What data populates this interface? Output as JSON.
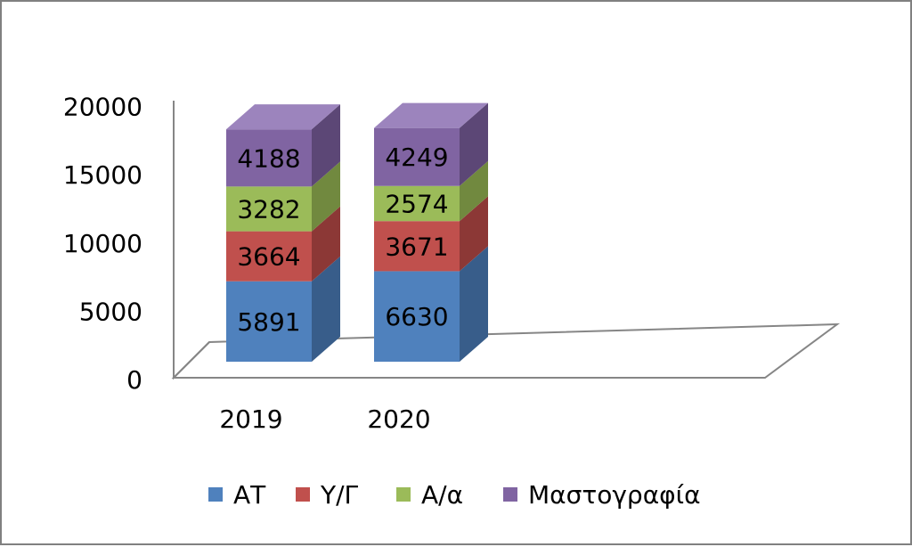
{
  "chart_data": {
    "type": "bar",
    "stacked": true,
    "three_d": true,
    "title": "",
    "xlabel": "",
    "ylabel": "",
    "categories": [
      "2019",
      "2020"
    ],
    "ylim": [
      0,
      20000
    ],
    "y_ticks": [
      "0",
      "5000",
      "10000",
      "15000",
      "20000"
    ],
    "grid": false,
    "legend_position": "bottom",
    "series": [
      {
        "name": "ΑΤ",
        "values": [
          5891,
          6630
        ],
        "color": "#4F81BD",
        "side_color": "#385D8A",
        "top_color": "#7099CF"
      },
      {
        "name": "Υ/Γ",
        "values": [
          3664,
          3671
        ],
        "color": "#C0504D",
        "side_color": "#8C3836",
        "top_color": "#D0706E"
      },
      {
        "name": "Α/α",
        "values": [
          3282,
          2574
        ],
        "color": "#9BBB59",
        "side_color": "#71893F",
        "top_color": "#B2CF7A"
      },
      {
        "name": "Μαστογραφία",
        "values": [
          4188,
          4249
        ],
        "color": "#8064A2",
        "side_color": "#5C4776",
        "top_color": "#9C84BD"
      }
    ]
  }
}
